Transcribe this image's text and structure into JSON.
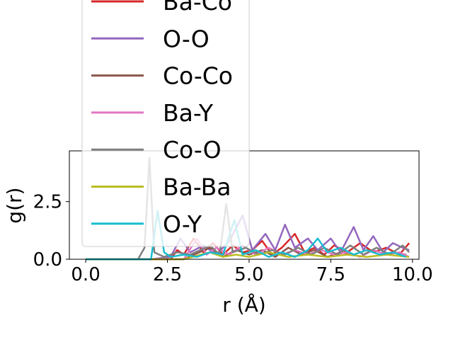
{
  "chart_data": {
    "type": "line",
    "xlabel": "r (Å)",
    "ylabel": "g(r)",
    "xlim": [
      -0.5,
      10.2
    ],
    "ylim": [
      0,
      4.7
    ],
    "xticks": [
      {
        "value": 0.0,
        "label": "0.0"
      },
      {
        "value": 2.5,
        "label": "2.5"
      },
      {
        "value": 5.0,
        "label": "5.0"
      },
      {
        "value": 7.5,
        "label": "7.5"
      },
      {
        "value": 10.0,
        "label": "10.0"
      }
    ],
    "yticks": [
      {
        "value": 0.0,
        "label": "0.0"
      },
      {
        "value": 2.5,
        "label": "2.5"
      }
    ],
    "legend_position": "upper-left, overflowing above plot",
    "series": [
      {
        "name": "Ba-Co",
        "color": "#d62728",
        "points": [
          [
            0,
            0
          ],
          [
            1,
            0
          ],
          [
            2,
            0
          ],
          [
            2.6,
            0
          ],
          [
            2.8,
            0.4
          ],
          [
            3.0,
            0.2
          ],
          [
            3.3,
            0.9
          ],
          [
            3.6,
            0.3
          ],
          [
            3.9,
            0.7
          ],
          [
            4.2,
            0.2
          ],
          [
            4.5,
            0.6
          ],
          [
            4.8,
            0.3
          ],
          [
            5.1,
            0.4
          ],
          [
            5.4,
            0.8
          ],
          [
            5.7,
            0.2
          ],
          [
            6.0,
            0.5
          ],
          [
            6.4,
            1.1
          ],
          [
            6.7,
            0.3
          ],
          [
            7.0,
            0.5
          ],
          [
            7.3,
            0.2
          ],
          [
            7.6,
            0.6
          ],
          [
            8.0,
            0.3
          ],
          [
            8.4,
            0.7
          ],
          [
            8.8,
            0.3
          ],
          [
            9.2,
            0.5
          ],
          [
            9.6,
            0.2
          ],
          [
            9.9,
            0.7
          ]
        ]
      },
      {
        "name": "O-O",
        "color": "#9467bd",
        "points": [
          [
            0,
            0
          ],
          [
            1,
            0
          ],
          [
            2,
            0
          ],
          [
            2.6,
            0.1
          ],
          [
            2.9,
            0.9
          ],
          [
            3.2,
            0.3
          ],
          [
            3.6,
            0.6
          ],
          [
            4.0,
            0.2
          ],
          [
            4.4,
            0.8
          ],
          [
            4.8,
            1.9
          ],
          [
            5.1,
            0.4
          ],
          [
            5.5,
            1.1
          ],
          [
            5.8,
            0.4
          ],
          [
            6.1,
            1.5
          ],
          [
            6.4,
            0.5
          ],
          [
            6.8,
            0.9
          ],
          [
            7.1,
            0.4
          ],
          [
            7.5,
            0.9
          ],
          [
            7.8,
            0.3
          ],
          [
            8.2,
            1.4
          ],
          [
            8.5,
            0.4
          ],
          [
            8.8,
            1.0
          ],
          [
            9.1,
            0.3
          ],
          [
            9.4,
            0.7
          ],
          [
            9.7,
            0.5
          ],
          [
            9.9,
            0.4
          ]
        ]
      },
      {
        "name": "Co-Co",
        "color": "#8c564b",
        "points": [
          [
            0,
            0
          ],
          [
            2,
            0
          ],
          [
            3,
            0
          ],
          [
            3.8,
            0.5
          ],
          [
            4.2,
            0.1
          ],
          [
            4.6,
            0.4
          ],
          [
            5.0,
            0.2
          ],
          [
            5.4,
            0.4
          ],
          [
            5.8,
            0.1
          ],
          [
            6.2,
            0.5
          ],
          [
            6.6,
            0.2
          ],
          [
            7.0,
            0.4
          ],
          [
            7.4,
            0.1
          ],
          [
            7.8,
            0.3
          ],
          [
            8.2,
            0.2
          ],
          [
            8.6,
            0.4
          ],
          [
            9.0,
            0.2
          ],
          [
            9.4,
            0.3
          ],
          [
            9.8,
            0.2
          ]
        ]
      },
      {
        "name": "Ba-Y",
        "color": "#e377c2",
        "points": [
          [
            0,
            0
          ],
          [
            2,
            0
          ],
          [
            3,
            0
          ],
          [
            3.4,
            0.9
          ],
          [
            3.7,
            0.2
          ],
          [
            4.0,
            0.5
          ],
          [
            4.4,
            0.2
          ],
          [
            4.8,
            0.6
          ],
          [
            5.2,
            0.2
          ],
          [
            5.6,
            0.5
          ],
          [
            6.0,
            0.2
          ],
          [
            6.4,
            0.4
          ],
          [
            6.8,
            0.2
          ],
          [
            7.2,
            0.4
          ],
          [
            7.6,
            0.2
          ],
          [
            8.0,
            0.3
          ],
          [
            8.4,
            0.1
          ],
          [
            8.8,
            0.4
          ],
          [
            9.2,
            0.2
          ],
          [
            9.6,
            0.3
          ],
          [
            9.9,
            0.1
          ]
        ]
      },
      {
        "name": "Co-O",
        "color": "#7f7f7f",
        "points": [
          [
            0,
            0
          ],
          [
            1,
            0
          ],
          [
            1.6,
            0
          ],
          [
            1.8,
            0.5
          ],
          [
            1.95,
            4.4
          ],
          [
            2.1,
            0.3
          ],
          [
            2.4,
            0.1
          ],
          [
            2.8,
            0.3
          ],
          [
            3.2,
            0.2
          ],
          [
            3.8,
            0.6
          ],
          [
            4.1,
            0.2
          ],
          [
            4.3,
            2.4
          ],
          [
            4.5,
            0.3
          ],
          [
            4.9,
            0.5
          ],
          [
            5.3,
            0.2
          ],
          [
            5.7,
            0.4
          ],
          [
            6.1,
            0.2
          ],
          [
            6.5,
            0.5
          ],
          [
            6.9,
            0.2
          ],
          [
            7.3,
            0.5
          ],
          [
            7.7,
            0.2
          ],
          [
            8.1,
            0.6
          ],
          [
            8.5,
            0.2
          ],
          [
            8.9,
            0.5
          ],
          [
            9.3,
            0.2
          ],
          [
            9.7,
            0.6
          ],
          [
            9.9,
            0.3
          ]
        ]
      },
      {
        "name": "Ba-Ba",
        "color": "#bcbd22",
        "points": [
          [
            0,
            0
          ],
          [
            3,
            0
          ],
          [
            3.8,
            0.3
          ],
          [
            4.2,
            0.1
          ],
          [
            4.6,
            0.2
          ],
          [
            5.0,
            0.1
          ],
          [
            5.6,
            0.3
          ],
          [
            6.2,
            0.1
          ],
          [
            6.8,
            0.2
          ],
          [
            7.4,
            0.1
          ],
          [
            8.0,
            0.2
          ],
          [
            8.6,
            0.1
          ],
          [
            9.2,
            0.2
          ],
          [
            9.9,
            0.1
          ]
        ]
      },
      {
        "name": "O-Y",
        "color": "#17becf",
        "points": [
          [
            0,
            0
          ],
          [
            1,
            0
          ],
          [
            2,
            0
          ],
          [
            2.2,
            2.1
          ],
          [
            2.4,
            0.3
          ],
          [
            2.6,
            0.1
          ],
          [
            3.0,
            0.2
          ],
          [
            3.4,
            0.1
          ],
          [
            3.8,
            0.3
          ],
          [
            4.2,
            0.2
          ],
          [
            4.55,
            1.7
          ],
          [
            4.8,
            0.2
          ],
          [
            5.2,
            0.4
          ],
          [
            5.6,
            0.1
          ],
          [
            6.0,
            0.3
          ],
          [
            6.4,
            0.1
          ],
          [
            6.8,
            0.4
          ],
          [
            7.1,
            0.9
          ],
          [
            7.4,
            0.3
          ],
          [
            7.8,
            0.5
          ],
          [
            8.2,
            0.2
          ],
          [
            8.6,
            0.4
          ],
          [
            9.0,
            0.2
          ],
          [
            9.4,
            0.3
          ],
          [
            9.8,
            0.1
          ]
        ]
      }
    ]
  }
}
